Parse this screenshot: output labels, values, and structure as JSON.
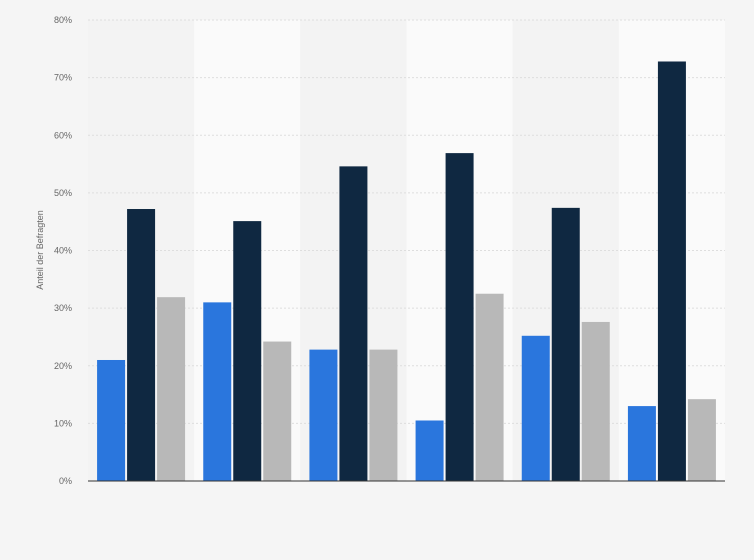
{
  "chart_data": {
    "type": "bar",
    "title": "",
    "xlabel": "",
    "ylabel": "Anteil der Befragten",
    "ylim": [
      0,
      80
    ],
    "yticks": [
      0,
      10,
      20,
      30,
      40,
      50,
      60,
      70,
      80
    ],
    "tick_suffix": "%",
    "grid": true,
    "categories": [
      "",
      "",
      "",
      "",
      "",
      ""
    ],
    "series": [
      {
        "color": "#2a76dd",
        "values": [
          21.0,
          31.0,
          22.8,
          10.5,
          25.2,
          13.0
        ]
      },
      {
        "color": "#0f2841",
        "values": [
          47.2,
          45.1,
          54.6,
          56.9,
          47.4,
          72.8
        ]
      },
      {
        "color": "#b8b8b8",
        "values": [
          31.9,
          24.2,
          22.8,
          32.5,
          27.6,
          14.2
        ]
      }
    ]
  },
  "colors": {
    "background": "#f5f5f5",
    "band_light": "#fafafa",
    "band_dark": "#f3f3f3",
    "axis": "#333333",
    "grid": "#dedede"
  }
}
